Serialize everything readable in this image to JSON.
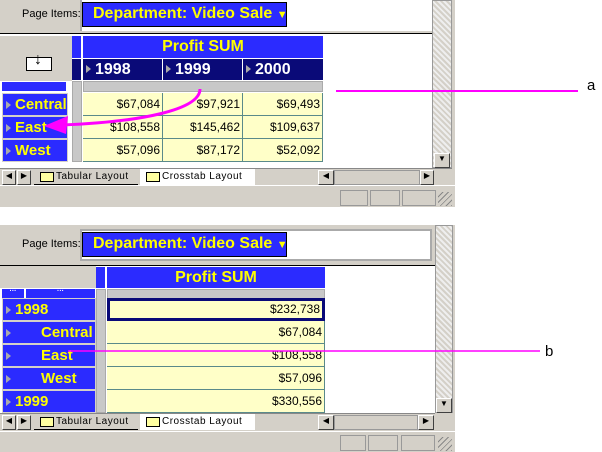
{
  "colors": {
    "header": "#2b2bff",
    "header_text": "#ffff00",
    "year_header": "#0a0a78",
    "cell": "#ffffc8",
    "annotation": "#ff00ff"
  },
  "top": {
    "page_items_label": "Page Items:",
    "page_item": "Department: Video Sale",
    "measure": "Profit SUM",
    "columns": [
      "1998",
      "1999",
      "2000"
    ],
    "rows": [
      {
        "label": "Central",
        "values": [
          "$67,084",
          "$97,921",
          "$69,493"
        ]
      },
      {
        "label": "East",
        "values": [
          "$108,558",
          "$145,462",
          "$109,637"
        ]
      },
      {
        "label": "West",
        "values": [
          "$57,096",
          "$87,172",
          "$52,092"
        ]
      }
    ],
    "tabs": [
      "Tabular Layout",
      "Crosstab Layout"
    ],
    "active_tab": "Crosstab Layout",
    "annotation": "a"
  },
  "bottom": {
    "page_items_label": "Page Items:",
    "page_item": "Department: Video Sale",
    "measure": "Profit SUM",
    "rows": [
      {
        "label": "1998",
        "value": "$232,738",
        "level": 0
      },
      {
        "label": "Central",
        "value": "$67,084",
        "level": 1
      },
      {
        "label": "East",
        "value": "$108,558",
        "level": 1
      },
      {
        "label": "West",
        "value": "$57,096",
        "level": 1
      },
      {
        "label": "1999",
        "value": "$330,556",
        "level": 0
      }
    ],
    "tabs": [
      "Tabular Layout",
      "Crosstab Layout"
    ],
    "active_tab": "Crosstab Layout",
    "annotation": "b"
  }
}
